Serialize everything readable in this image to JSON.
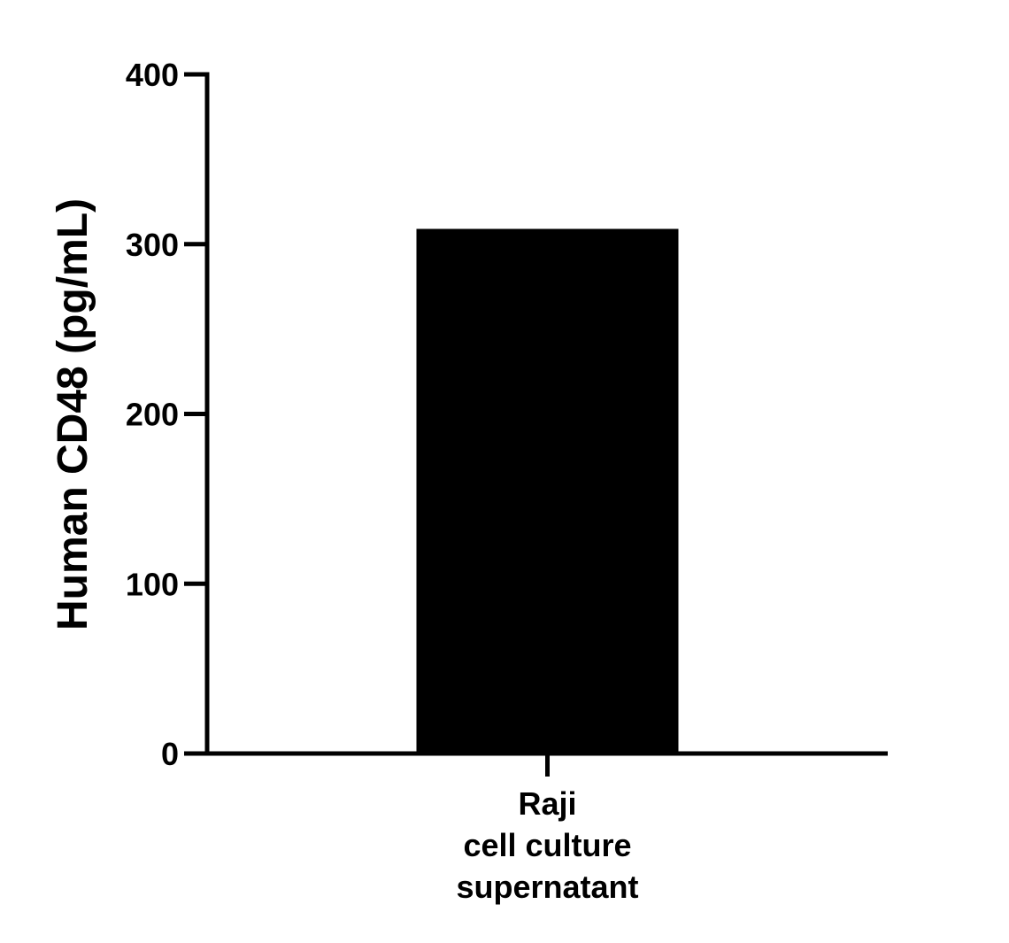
{
  "chart_data": {
    "type": "bar",
    "categories": [
      [
        "Raji",
        "cell culture",
        "supernatant"
      ]
    ],
    "values": [
      309
    ],
    "title": "",
    "xlabel": "",
    "ylabel": "Human CD48 (pg/mL)",
    "ylim": [
      0,
      400
    ],
    "yticks": [
      0,
      100,
      200,
      300,
      400
    ],
    "grid": false,
    "legend": "none",
    "bar_color": "#000000",
    "axis_color": "#000000"
  }
}
